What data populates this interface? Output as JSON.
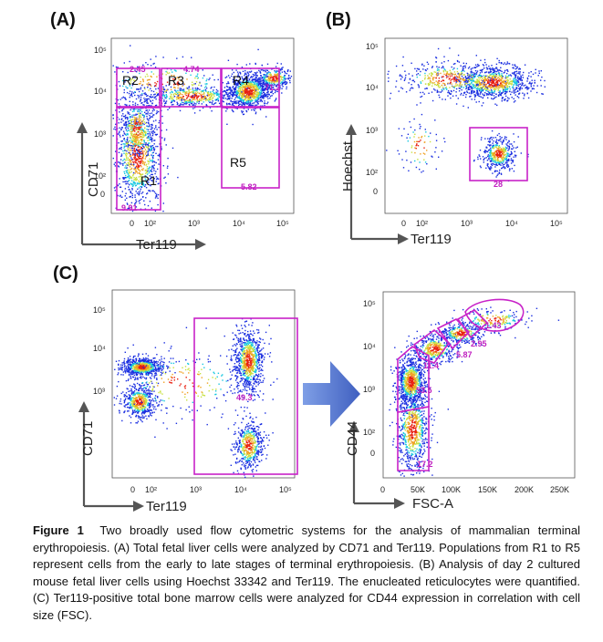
{
  "chart_data": [
    {
      "type": "scatter",
      "panel": "(A)",
      "xlabel": "Ter119",
      "ylabel": "CD71",
      "x_ticks": [
        "0",
        "10²",
        "10³",
        "10⁴",
        "10⁵"
      ],
      "y_ticks": [
        "0",
        "10²",
        "10³",
        "10⁴",
        "10⁵"
      ],
      "gates": [
        {
          "name": "R1",
          "percent": "9.91"
        },
        {
          "name": "R2",
          "percent": "2.45"
        },
        {
          "name": "R3",
          "percent": "4.74"
        },
        {
          "name": "R4",
          "percent": "71.2"
        },
        {
          "name": "R5",
          "percent": "5.82"
        }
      ]
    },
    {
      "type": "scatter",
      "panel": "(B)",
      "xlabel": "Ter119",
      "ylabel": "Hoechst",
      "x_ticks": [
        "0",
        "10²",
        "10³",
        "10⁴",
        "10⁵"
      ],
      "y_ticks": [
        "0",
        "10²",
        "10³",
        "10⁴",
        "10⁵"
      ],
      "gates": [
        {
          "name": "",
          "percent": "28"
        }
      ]
    },
    {
      "type": "scatter",
      "panel": "(C)",
      "xlabel": "Ter119",
      "ylabel": "CD71",
      "x_ticks": [
        "0",
        "10²",
        "10³",
        "10⁴",
        "10⁵"
      ],
      "y_ticks": [
        "10³",
        "10⁴",
        "10⁵"
      ],
      "gates": [
        {
          "name": "",
          "percent": "49.3"
        }
      ]
    },
    {
      "type": "scatter",
      "panel": "(C)",
      "xlabel": "FSC-A",
      "ylabel": "CD44",
      "x_ticks": [
        "0",
        "50K",
        "100K",
        "150K",
        "200K",
        "250K"
      ],
      "y_ticks": [
        "0",
        "10²",
        "10³",
        "10⁴",
        "10⁵"
      ],
      "gates": [
        {
          "name": "",
          "percent": "17.2"
        },
        {
          "name": "",
          "percent": "53.5"
        },
        {
          "name": "",
          "percent": "11.4"
        },
        {
          "name": "",
          "percent": "5.87"
        },
        {
          "name": "",
          "percent": "2.95"
        },
        {
          "name": "",
          "percent": "1.43"
        }
      ]
    }
  ],
  "panel_labels": {
    "a": "(A)",
    "b": "(B)",
    "c": "(C)"
  },
  "gate_names": {
    "r1": "R1",
    "r2": "R2",
    "r3": "R3",
    "r4": "R4",
    "r5": "R5"
  },
  "caption": {
    "label": "Figure 1",
    "text": "Two broadly used flow cytometric systems for the analysis of mammalian terminal erythropoiesis. (A) Total fetal liver cells were analyzed by CD71 and Ter119. Populations from R1 to R5 represent cells from the early to late stages of terminal erythropoiesis. (B) Analysis of day 2 cultured mouse fetal liver cells using Hoechst 33342 and Ter119. The enucleated reticulocytes were quantified. (C) Ter119-positive total bone marrow cells were analyzed for CD44 expression in correlation with cell size (FSC)."
  },
  "colors": {
    "gate": "#c822c8",
    "dots_low": "#1a2ee0",
    "dots_mid": "#18c8e0",
    "dots_high": "#e82010",
    "arrow": "#5b7fd6"
  }
}
